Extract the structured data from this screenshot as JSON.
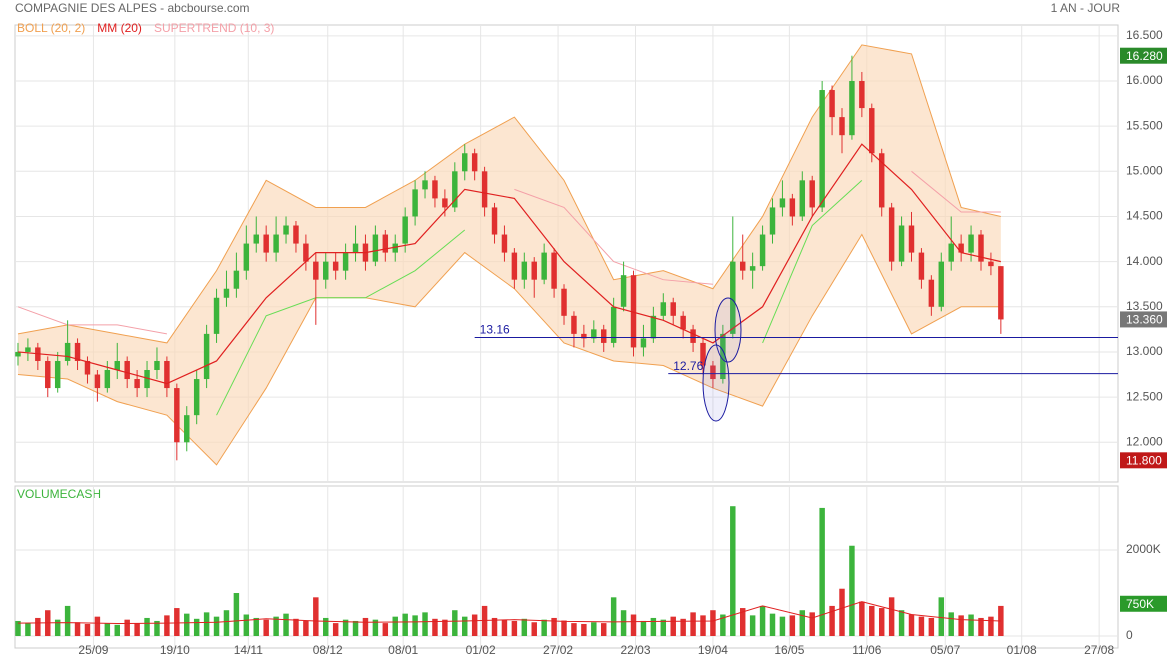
{
  "chart_data": {
    "type": "candlestick",
    "title": "COMPAGNIE DES ALPES - abcbourse.com",
    "period": "1 AN - JOUR",
    "legend": [
      {
        "name": "BOLL (20, 2)",
        "color": "#f0a050"
      },
      {
        "name": "MM (20)",
        "color": "#e02020"
      },
      {
        "name": "SUPERTREND (10, 3)",
        "color": "#f4a0a8"
      }
    ],
    "xlim": [
      -0.3,
      110.8
    ],
    "xticks": [
      {
        "value": 7.6,
        "label": "25/09"
      },
      {
        "value": 15.8,
        "label": "19/10"
      },
      {
        "value": 23.2,
        "label": "14/11"
      },
      {
        "value": 31.2,
        "label": "08/12"
      },
      {
        "value": 38.8,
        "label": "08/01"
      },
      {
        "value": 46.6,
        "label": "01/02"
      },
      {
        "value": 54.4,
        "label": "27/02"
      },
      {
        "value": 62.2,
        "label": "22/03"
      },
      {
        "value": 70,
        "label": "19/04"
      },
      {
        "value": 77.7,
        "label": "16/05"
      },
      {
        "value": 85.5,
        "label": "11/06"
      },
      {
        "value": 93.4,
        "label": "05/07"
      },
      {
        "value": 101.1,
        "label": "01/08"
      },
      {
        "value": 108.9,
        "label": "27/08"
      }
    ],
    "ylim": [
      11.56,
      16.62
    ],
    "yticks": [
      {
        "value": 12,
        "label": "12.000"
      },
      {
        "value": 12.5,
        "label": "12.500"
      },
      {
        "value": 13,
        "label": "13.000"
      },
      {
        "value": 13.5,
        "label": "13.500"
      },
      {
        "value": 14,
        "label": "14.000"
      },
      {
        "value": 14.5,
        "label": "14.500"
      },
      {
        "value": 15,
        "label": "15.000"
      },
      {
        "value": 15.5,
        "label": "15.500"
      },
      {
        "value": 16,
        "label": "16.000"
      },
      {
        "value": 16.5,
        "label": "16.500"
      }
    ],
    "up_color": "#3cb43c",
    "down_color": "#e03030",
    "open": [
      12.95,
      13.0,
      13.05,
      12.9,
      12.6,
      12.9,
      13.1,
      12.9,
      12.75,
      12.6,
      12.8,
      12.9,
      12.7,
      12.6,
      12.8,
      12.9,
      12.6,
      12.0,
      12.3,
      12.7,
      13.2,
      13.6,
      13.7,
      13.9,
      14.2,
      14.3,
      14.1,
      14.3,
      14.4,
      14.2,
      14.0,
      13.8,
      14.0,
      13.9,
      14.1,
      14.2,
      14.0,
      14.3,
      14.1,
      14.2,
      14.5,
      14.8,
      14.9,
      14.7,
      14.6,
      15.0,
      15.2,
      15.0,
      14.6,
      14.3,
      14.1,
      13.8,
      14.0,
      13.8,
      14.1,
      13.7,
      13.4,
      13.2,
      13.15,
      13.25,
      13.1,
      13.5,
      13.85,
      13.05,
      13.15,
      13.4,
      13.55,
      13.4,
      13.25,
      13.1,
      12.85,
      12.7,
      13.2,
      14.0,
      13.9,
      13.95,
      14.3,
      14.6,
      14.7,
      14.5,
      14.9,
      14.6,
      15.9,
      15.6,
      15.4,
      16.0,
      15.7,
      15.2,
      14.6,
      14.0,
      14.4,
      14.1,
      13.8,
      13.5,
      14.0,
      14.2,
      14.1,
      14.3,
      14.0,
      13.95
    ],
    "high": [
      13.1,
      13.15,
      13.1,
      12.95,
      13.0,
      13.35,
      13.15,
      12.95,
      12.8,
      12.9,
      13.1,
      12.95,
      12.8,
      12.9,
      13.05,
      12.95,
      12.65,
      12.4,
      12.8,
      13.3,
      13.7,
      13.9,
      14.1,
      14.4,
      14.5,
      14.4,
      14.5,
      14.5,
      14.45,
      14.3,
      14.1,
      14.1,
      14.1,
      14.2,
      14.4,
      14.3,
      14.4,
      14.35,
      14.3,
      14.6,
      14.9,
      15.0,
      14.95,
      14.8,
      15.1,
      15.3,
      15.25,
      15.05,
      14.65,
      14.4,
      14.15,
      14.1,
      14.05,
      14.2,
      14.15,
      13.75,
      13.45,
      13.3,
      13.35,
      13.3,
      13.6,
      14.0,
      13.9,
      13.3,
      13.5,
      13.65,
      13.6,
      13.45,
      13.3,
      13.15,
      12.9,
      13.3,
      14.5,
      14.3,
      14.1,
      14.4,
      14.7,
      14.9,
      14.75,
      15.0,
      14.95,
      16.0,
      15.95,
      15.7,
      16.28,
      16.1,
      15.75,
      15.25,
      14.65,
      14.5,
      14.55,
      14.15,
      13.85,
      14.1,
      14.5,
      14.3,
      14.4,
      14.35,
      14.1,
      13.95
    ],
    "low": [
      12.85,
      12.9,
      12.8,
      12.5,
      12.55,
      12.85,
      12.8,
      12.65,
      12.45,
      12.55,
      12.7,
      12.6,
      12.5,
      12.5,
      12.7,
      12.5,
      11.8,
      11.9,
      12.2,
      12.6,
      13.1,
      13.5,
      13.6,
      13.8,
      14.1,
      14.0,
      14.0,
      14.2,
      14.1,
      13.9,
      13.3,
      13.7,
      13.8,
      13.8,
      14.0,
      13.9,
      13.95,
      14.0,
      14.0,
      14.1,
      14.4,
      14.7,
      14.6,
      14.5,
      14.55,
      14.9,
      14.9,
      14.5,
      14.2,
      14.0,
      13.7,
      13.7,
      13.6,
      13.75,
      13.6,
      13.3,
      13.05,
      13.05,
      13.1,
      13.0,
      13.05,
      13.45,
      12.95,
      12.95,
      13.1,
      13.35,
      13.3,
      13.15,
      13.0,
      12.75,
      12.6,
      12.65,
      13.15,
      13.8,
      13.7,
      13.9,
      14.2,
      14.5,
      14.4,
      14.45,
      14.5,
      14.55,
      15.4,
      15.2,
      15.35,
      15.6,
      15.1,
      14.5,
      13.9,
      13.95,
      14.0,
      13.7,
      13.4,
      13.45,
      13.9,
      14.0,
      14.0,
      13.9,
      13.85,
      13.2
    ],
    "close": [
      13.0,
      13.05,
      12.9,
      12.6,
      12.9,
      13.1,
      12.9,
      12.75,
      12.6,
      12.8,
      12.9,
      12.7,
      12.6,
      12.8,
      12.9,
      12.6,
      12.0,
      12.3,
      12.7,
      13.2,
      13.6,
      13.7,
      13.9,
      14.2,
      14.3,
      14.1,
      14.3,
      14.4,
      14.2,
      14.0,
      13.8,
      14.0,
      13.9,
      14.1,
      14.2,
      14.0,
      14.3,
      14.1,
      14.2,
      14.5,
      14.8,
      14.9,
      14.7,
      14.6,
      15.0,
      15.2,
      15.0,
      14.6,
      14.3,
      14.1,
      13.8,
      14.0,
      13.8,
      14.1,
      13.7,
      13.4,
      13.2,
      13.15,
      13.25,
      13.1,
      13.5,
      13.85,
      13.05,
      13.15,
      13.4,
      13.55,
      13.4,
      13.25,
      13.1,
      12.85,
      12.7,
      13.2,
      14.0,
      13.9,
      13.95,
      14.3,
      14.6,
      14.7,
      14.5,
      14.9,
      14.6,
      15.9,
      15.6,
      15.4,
      16.0,
      15.7,
      15.2,
      14.6,
      14.0,
      14.4,
      14.1,
      13.8,
      13.5,
      14.0,
      14.2,
      14.1,
      14.3,
      14.0,
      13.95,
      13.36
    ],
    "indicator_x": [
      0,
      5,
      10,
      15,
      20,
      25,
      30,
      35,
      40,
      45,
      50,
      55,
      60,
      65,
      70,
      75,
      80,
      85,
      90,
      95,
      99
    ],
    "boll_upper": [
      13.2,
      13.3,
      13.2,
      13.1,
      13.9,
      14.9,
      14.6,
      14.6,
      14.9,
      15.3,
      15.6,
      14.9,
      13.8,
      13.9,
      13.7,
      14.5,
      15.6,
      16.4,
      16.3,
      14.6,
      14.5
    ],
    "boll_lower": [
      12.75,
      12.7,
      12.45,
      12.3,
      11.75,
      12.6,
      13.6,
      13.6,
      13.5,
      14.1,
      13.7,
      13.1,
      12.9,
      12.85,
      12.6,
      12.4,
      13.4,
      14.3,
      13.2,
      13.5,
      13.5
    ],
    "boll_fill": "#fbd9b8",
    "mm": [
      13.0,
      12.95,
      12.8,
      12.65,
      12.9,
      13.6,
      14.1,
      14.1,
      14.2,
      14.8,
      14.7,
      14.0,
      13.5,
      13.35,
      13.1,
      13.5,
      14.5,
      15.3,
      14.8,
      14.1,
      14.0
    ],
    "supertrend_bull": [
      null,
      null,
      null,
      null,
      12.3,
      13.4,
      13.6,
      13.6,
      13.9,
      14.35,
      null,
      null,
      null,
      null,
      null,
      13.1,
      14.4,
      14.9,
      null,
      null,
      null
    ],
    "supertrend_bear": [
      13.5,
      13.3,
      13.3,
      13.2,
      null,
      null,
      null,
      null,
      null,
      null,
      14.8,
      14.6,
      14.0,
      13.8,
      13.75,
      null,
      null,
      null,
      15.0,
      14.55,
      14.55
    ],
    "supertrend_bull_color": "#66dd55",
    "hlines": [
      {
        "value": 13.16,
        "label": "13.16",
        "x_from": 46
      },
      {
        "value": 12.76,
        "label": "12.76",
        "x_from": 65.5
      }
    ],
    "hline_color": "#1a1aa0",
    "price_marks": [
      {
        "value": 16.28,
        "label": "16.280",
        "color": "#2a8a2a"
      },
      {
        "value": 13.36,
        "label": "13.360",
        "color": "#777777"
      },
      {
        "value": 11.8,
        "label": "11.800",
        "color": "#c01818"
      }
    ],
    "volume": {
      "title": "VOLUMECASH",
      "ylim": [
        0,
        3490
      ],
      "yticks": [
        {
          "value": 0,
          "label": "0"
        },
        {
          "value": 2000,
          "label": "2000K"
        }
      ],
      "values": [
        350,
        300,
        420,
        600,
        380,
        700,
        320,
        280,
        450,
        300,
        260,
        380,
        300,
        420,
        350,
        480,
        650,
        520,
        400,
        550,
        450,
        600,
        1000,
        500,
        420,
        380,
        450,
        520,
        400,
        350,
        900,
        420,
        300,
        380,
        350,
        420,
        380,
        300,
        450,
        520,
        480,
        550,
        400,
        380,
        600,
        450,
        500,
        700,
        420,
        380,
        350,
        400,
        320,
        380,
        420,
        360,
        300,
        280,
        320,
        300,
        900,
        600,
        500,
        350,
        420,
        380,
        450,
        400,
        550,
        480,
        600,
        500,
        3020,
        650,
        480,
        700,
        520,
        450,
        480,
        600,
        550,
        2980,
        700,
        1100,
        2100,
        800,
        700,
        650,
        900,
        600,
        500,
        450,
        420,
        900,
        550,
        480,
        500,
        420,
        450,
        700
      ],
      "ma": [
        300,
        310,
        290,
        300,
        320,
        400,
        350,
        320,
        330,
        350,
        380,
        340,
        330,
        340,
        350,
        700,
        420,
        800,
        500,
        380,
        350
      ],
      "mark": {
        "value": 750,
        "label": "750K",
        "color": "#2a9a2a"
      }
    }
  }
}
